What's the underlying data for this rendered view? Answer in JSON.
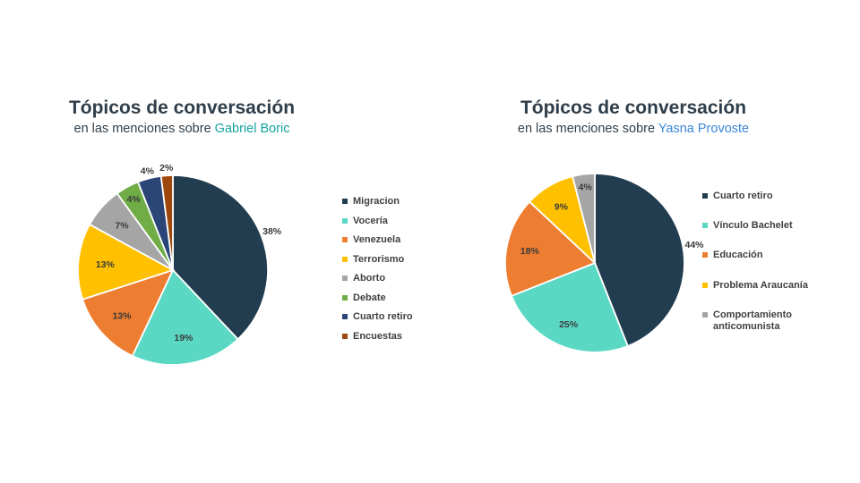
{
  "chart_data": [
    {
      "type": "pie",
      "title": "Tópicos de conversación",
      "subtitle_prefix": "en las menciones sobre ",
      "subtitle_highlight": "Gabriel Boric",
      "highlight_color": "#13a3a0",
      "legend_position": "right",
      "slices": [
        {
          "label": "Migracion",
          "value": 38,
          "display": "38%",
          "color": "#223d4f"
        },
        {
          "label": "Vocería",
          "value": 19,
          "display": "19%",
          "color": "#5ad8c4"
        },
        {
          "label": "Venezuela",
          "value": 13,
          "display": "13%",
          "color": "#ed7d31"
        },
        {
          "label": "Terrorismo",
          "value": 13,
          "display": "13%",
          "color": "#ffc000"
        },
        {
          "label": "Aborto",
          "value": 7,
          "display": "7%",
          "color": "#a5a5a5"
        },
        {
          "label": "Debate",
          "value": 4,
          "display": "4%",
          "color": "#70ad47"
        },
        {
          "label": "Cuarto retiro",
          "value": 4,
          "display": "4%",
          "color": "#2b4577"
        },
        {
          "label": "Encuestas",
          "value": 2,
          "display": "2%",
          "color": "#9e480e"
        }
      ]
    },
    {
      "type": "pie",
      "title": "Tópicos de conversación",
      "subtitle_prefix": "en las menciones sobre ",
      "subtitle_highlight": "Yasna Provoste",
      "highlight_color": "#3b86d8",
      "legend_position": "right",
      "slices": [
        {
          "label": "Cuarto retiro",
          "value": 44,
          "display": "44%",
          "color": "#223d4f"
        },
        {
          "label": "Vínculo Bachelet",
          "value": 25,
          "display": "25%",
          "color": "#5ad8c4"
        },
        {
          "label": "Educación",
          "value": 18,
          "display": "18%",
          "color": "#ed7d31"
        },
        {
          "label": "Problema Araucanía",
          "value": 9,
          "display": "9%",
          "color": "#ffc000"
        },
        {
          "label": "Comportamiento anticomunista",
          "value": 4,
          "display": "4%",
          "color": "#a5a5a5"
        }
      ]
    }
  ]
}
